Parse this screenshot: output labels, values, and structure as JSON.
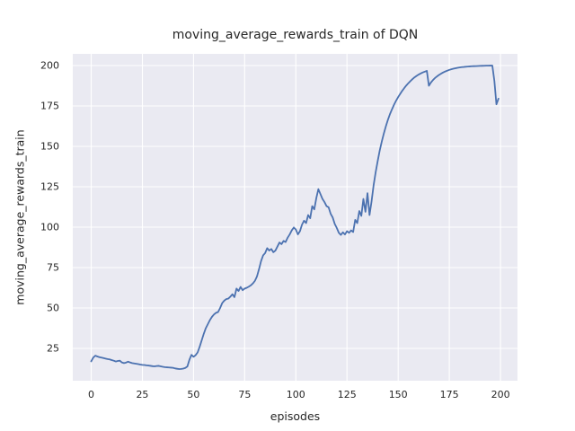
{
  "figure": {
    "background_color": "#ffffff",
    "plot_background_color": "#eaeaf2",
    "grid_color": "#ffffff",
    "text_color": "#262626"
  },
  "chart_data": {
    "type": "line",
    "title": "moving_average_rewards_train of DQN",
    "xlabel": "episodes",
    "ylabel": "moving_average_rewards_train",
    "grid": true,
    "legend_position": "none",
    "xlim": [
      -9,
      208.3
    ],
    "ylim": [
      5,
      207.2
    ],
    "xticks": [
      0,
      25,
      50,
      75,
      100,
      125,
      150,
      175,
      200
    ],
    "yticks": [
      25,
      50,
      75,
      100,
      125,
      150,
      175,
      200
    ],
    "x_start": 0,
    "x_step": 1,
    "series": [
      {
        "name": "moving_average_rewards_train",
        "color": "#4c72b0",
        "line_width": 1.8,
        "values": [
          17.0,
          19.3,
          20.5,
          20.0,
          19.6,
          19.3,
          19.0,
          18.7,
          18.4,
          18.2,
          17.8,
          17.4,
          16.9,
          17.2,
          17.4,
          16.3,
          15.9,
          16.2,
          16.8,
          16.3,
          15.9,
          15.7,
          15.5,
          15.3,
          15.0,
          14.8,
          14.7,
          14.5,
          14.4,
          14.2,
          14.0,
          13.9,
          14.1,
          14.2,
          13.9,
          13.6,
          13.4,
          13.3,
          13.2,
          13.1,
          13.0,
          12.6,
          12.4,
          12.2,
          12.3,
          12.5,
          12.9,
          13.8,
          18.0,
          21.0,
          19.8,
          20.8,
          22.5,
          26.0,
          30.0,
          34.0,
          37.5,
          40.0,
          42.5,
          44.5,
          46.0,
          47.0,
          47.5,
          50.0,
          53.0,
          54.5,
          55.5,
          55.8,
          57.0,
          58.5,
          56.7,
          62.0,
          60.5,
          63.0,
          61.0,
          62.0,
          62.5,
          63.2,
          64.0,
          65.2,
          66.8,
          69.5,
          74.0,
          79.0,
          82.5,
          84.0,
          87.0,
          85.5,
          86.5,
          84.5,
          85.5,
          88.0,
          90.5,
          89.5,
          91.5,
          90.8,
          93.5,
          95.5,
          98.0,
          99.8,
          98.5,
          95.5,
          97.5,
          101.5,
          104.0,
          102.5,
          107.5,
          105.5,
          113.0,
          111.0,
          118.0,
          123.5,
          120.5,
          117.5,
          115.5,
          113.0,
          112.3,
          108.3,
          106.0,
          102.0,
          99.5,
          96.5,
          95.2,
          96.8,
          95.5,
          97.5,
          96.5,
          98.0,
          97.0,
          104.5,
          102.5,
          110.0,
          107.0,
          117.5,
          109.5,
          121.0,
          107.5,
          116.0,
          126.0,
          134.0,
          141.0,
          147.5,
          153.0,
          158.0,
          162.5,
          166.5,
          170.0,
          173.0,
          175.8,
          178.3,
          180.5,
          182.5,
          184.4,
          186.1,
          187.7,
          189.1,
          190.4,
          191.6,
          192.7,
          193.6,
          194.4,
          195.1,
          195.7,
          196.2,
          196.7,
          187.5,
          189.5,
          191.0,
          192.3,
          193.3,
          194.2,
          195.0,
          195.7,
          196.3,
          196.8,
          197.3,
          197.7,
          198.0,
          198.3,
          198.6,
          198.8,
          199.0,
          199.1,
          199.25,
          199.35,
          199.45,
          199.55,
          199.6,
          199.65,
          199.7,
          199.75,
          199.8,
          199.85,
          199.9,
          199.92,
          199.95,
          199.97,
          190.5,
          176.0,
          179.5
        ]
      }
    ]
  }
}
